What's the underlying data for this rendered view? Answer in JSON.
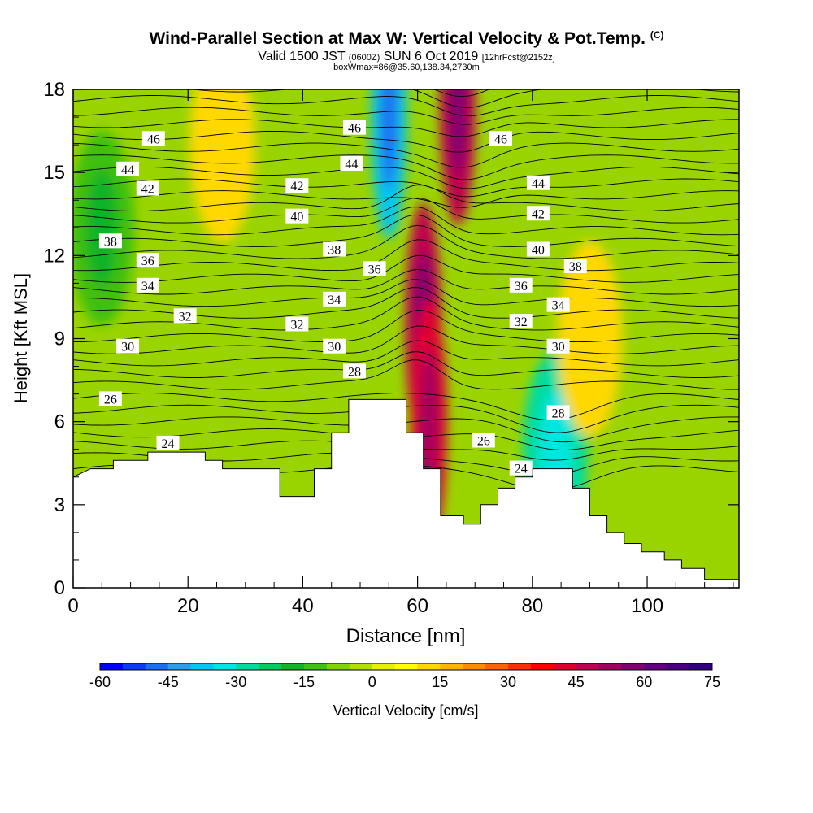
{
  "title": {
    "main": "Wind-Parallel Section at Max W: Vertical Velocity & Pot.Temp.",
    "copyright": "(C)",
    "valid_prefix": "Valid 1500 JST",
    "valid_utc": "(0600Z)",
    "valid_date": "SUN 6 Oct 2019",
    "forecast": "[12hrFcst@2152z]",
    "boxline": "boxWmax=86@35.60,138.34,2730m"
  },
  "chart_data": {
    "type": "heatmap",
    "xlabel": "Distance [nm]",
    "ylabel": "Height [Kft MSL]",
    "xlim": [
      0,
      116
    ],
    "ylim": [
      0,
      18
    ],
    "x_ticks": [
      0,
      20,
      40,
      60,
      80,
      100
    ],
    "y_ticks": [
      0,
      3,
      6,
      9,
      12,
      15,
      18
    ],
    "colorbar": {
      "label": "Vertical Velocity [cm/s]",
      "range": [
        -60,
        75
      ],
      "step": 5,
      "tick_labels": [
        -60,
        -45,
        -30,
        -15,
        0,
        15,
        30,
        45,
        60,
        75
      ],
      "colors": [
        "#0000ff",
        "#0a3cf8",
        "#1a6ef0",
        "#2a9ee8",
        "#00c8f0",
        "#00e6e0",
        "#00dca0",
        "#00cc60",
        "#10b428",
        "#40c010",
        "#80d400",
        "#b4e000",
        "#e6f000",
        "#ffff00",
        "#ffd800",
        "#ffb400",
        "#ff8c00",
        "#ff6400",
        "#ff3000",
        "#ff0000",
        "#e00030",
        "#c00050",
        "#a00060",
        "#800070",
        "#600080",
        "#480080",
        "#300080"
      ]
    },
    "velocity_features": [
      {
        "x": 61,
        "y": 9.5,
        "value": 45
      },
      {
        "x": 62,
        "y": 6,
        "value": 40
      },
      {
        "x": 55,
        "y": 17,
        "value": -40
      },
      {
        "x": 67,
        "y": 17.5,
        "value": 45
      },
      {
        "x": 84,
        "y": 5,
        "value": -30
      },
      {
        "x": 5,
        "y": 13,
        "value": -15
      },
      {
        "x": 26,
        "y": 16,
        "value": 10
      },
      {
        "x": 90,
        "y": 9,
        "value": 10
      }
    ],
    "terrain": [
      [
        0,
        4
      ],
      [
        3,
        4.3
      ],
      [
        7,
        4.3
      ],
      [
        7,
        4.6
      ],
      [
        13,
        4.6
      ],
      [
        13,
        4.9
      ],
      [
        23,
        4.9
      ],
      [
        23,
        4.6
      ],
      [
        26,
        4.6
      ],
      [
        26,
        4.3
      ],
      [
        36,
        4.3
      ],
      [
        36,
        3.3
      ],
      [
        42,
        3.3
      ],
      [
        42,
        4.3
      ],
      [
        45,
        4.3
      ],
      [
        45,
        5.6
      ],
      [
        48,
        5.6
      ],
      [
        48,
        6.8
      ],
      [
        58,
        6.8
      ],
      [
        58,
        5.6
      ],
      [
        61,
        5.6
      ],
      [
        61,
        4.3
      ],
      [
        64,
        4.3
      ],
      [
        64,
        2.6
      ],
      [
        68,
        2.6
      ],
      [
        68,
        2.3
      ],
      [
        71,
        2.3
      ],
      [
        71,
        3
      ],
      [
        74,
        3
      ],
      [
        74,
        3.6
      ],
      [
        77,
        3.6
      ],
      [
        77,
        4
      ],
      [
        80,
        4
      ],
      [
        80,
        4.3
      ],
      [
        87,
        4.3
      ],
      [
        87,
        3.6
      ],
      [
        90,
        3.6
      ],
      [
        90,
        2.6
      ],
      [
        93,
        2.6
      ],
      [
        93,
        2
      ],
      [
        96,
        2
      ],
      [
        96,
        1.6
      ],
      [
        99,
        1.6
      ],
      [
        99,
        1.3
      ],
      [
        103,
        1.3
      ],
      [
        103,
        1
      ],
      [
        106,
        1
      ],
      [
        106,
        0.7
      ],
      [
        110,
        0.7
      ],
      [
        110,
        0.3
      ],
      [
        116,
        0.3
      ]
    ],
    "contour_labels": [
      {
        "text": "46",
        "x": 14,
        "y": 16.2
      },
      {
        "text": "44",
        "x": 9.5,
        "y": 15.1
      },
      {
        "text": "42",
        "x": 13,
        "y": 14.4
      },
      {
        "text": "38",
        "x": 6.5,
        "y": 12.5
      },
      {
        "text": "36",
        "x": 13,
        "y": 11.8
      },
      {
        "text": "34",
        "x": 13,
        "y": 10.9
      },
      {
        "text": "32",
        "x": 19.5,
        "y": 9.8
      },
      {
        "text": "30",
        "x": 9.5,
        "y": 8.7
      },
      {
        "text": "26",
        "x": 6.5,
        "y": 6.8
      },
      {
        "text": "24",
        "x": 16.5,
        "y": 5.2
      },
      {
        "text": "46",
        "x": 49,
        "y": 16.6
      },
      {
        "text": "44",
        "x": 48.5,
        "y": 15.3
      },
      {
        "text": "42",
        "x": 39,
        "y": 14.5
      },
      {
        "text": "40",
        "x": 39,
        "y": 13.4
      },
      {
        "text": "38",
        "x": 45.5,
        "y": 12.2
      },
      {
        "text": "36",
        "x": 52.5,
        "y": 11.5
      },
      {
        "text": "34",
        "x": 45.5,
        "y": 10.4
      },
      {
        "text": "32",
        "x": 39,
        "y": 9.5
      },
      {
        "text": "30",
        "x": 45.5,
        "y": 8.7
      },
      {
        "text": "28",
        "x": 49,
        "y": 7.8
      },
      {
        "text": "26",
        "x": 71.5,
        "y": 5.3
      },
      {
        "text": "24",
        "x": 78,
        "y": 4.3
      },
      {
        "text": "46",
        "x": 74.5,
        "y": 16.2
      },
      {
        "text": "44",
        "x": 81,
        "y": 14.6
      },
      {
        "text": "42",
        "x": 81,
        "y": 13.5
      },
      {
        "text": "40",
        "x": 81,
        "y": 12.2
      },
      {
        "text": "38",
        "x": 87.5,
        "y": 11.6
      },
      {
        "text": "36",
        "x": 78,
        "y": 10.9
      },
      {
        "text": "34",
        "x": 84.5,
        "y": 10.2
      },
      {
        "text": "32",
        "x": 78,
        "y": 9.6
      },
      {
        "text": "30",
        "x": 84.5,
        "y": 8.7
      },
      {
        "text": "28",
        "x": 84.5,
        "y": 6.3
      }
    ]
  }
}
